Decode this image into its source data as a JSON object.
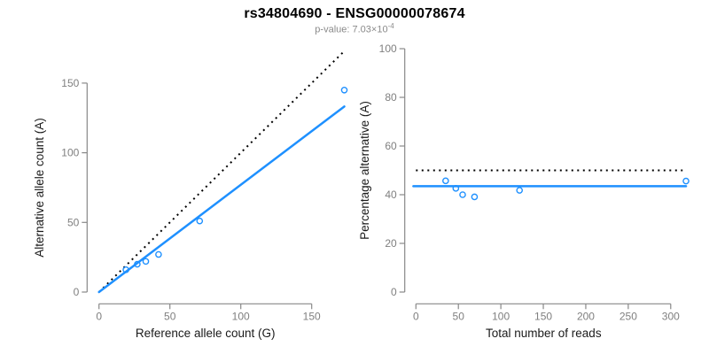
{
  "header": {
    "title": "rs34804690 - ENSG00000078674",
    "subtitle_prefix": "p-value: 7.03×10",
    "subtitle_exponent": "-4"
  },
  "colors": {
    "background": "#FFFFFF",
    "title": "#000000",
    "subtitle": "#8A8A8A",
    "axis_line": "#888888",
    "tick_label": "#7F7F7F",
    "axis_label": "#1A1A1A",
    "fit_line": "#1E90FF",
    "point_stroke": "#1E90FF",
    "dotted_line": "#000000"
  },
  "chart_data": [
    {
      "type": "scatter",
      "title": "",
      "xlabel": "Reference allele count (G)",
      "ylabel": "Alternative allele count (A)",
      "xticks": [
        0,
        50,
        100,
        150
      ],
      "yticks": [
        0,
        50,
        100,
        150
      ],
      "xlim": [
        0,
        178
      ],
      "ylim": [
        0,
        178
      ],
      "grid": false,
      "points": [
        [
          19,
          16
        ],
        [
          27,
          20
        ],
        [
          33,
          22
        ],
        [
          42,
          27
        ],
        [
          71,
          51
        ],
        [
          173,
          145
        ]
      ],
      "lines": [
        {
          "name": "identity-line",
          "style": "dotted",
          "color": "#000000",
          "x1": 0,
          "y1": 0,
          "x2": 173,
          "y2": 173
        },
        {
          "name": "fitted-line",
          "style": "solid",
          "color": "#1E90FF",
          "x1": 0,
          "y1": 0,
          "x2": 173,
          "y2": 133.2
        }
      ]
    },
    {
      "type": "scatter",
      "title": "",
      "xlabel": "Total number of reads",
      "ylabel": "Percentage alternative (A)",
      "xticks": [
        0,
        50,
        100,
        150,
        200,
        250,
        300
      ],
      "yticks": [
        0,
        20,
        40,
        60,
        80,
        100
      ],
      "xlim": [
        0,
        320
      ],
      "ylim": [
        0,
        100
      ],
      "grid": false,
      "points": [
        [
          35,
          45.7
        ],
        [
          47,
          42.6
        ],
        [
          55,
          40.0
        ],
        [
          69,
          39.1
        ],
        [
          122,
          41.8
        ],
        [
          318,
          45.6
        ]
      ],
      "lines": [
        {
          "name": "null-expectation-line",
          "style": "dotted",
          "color": "#000000",
          "x1": 0,
          "y1": 50,
          "x2": 314,
          "y2": 50
        },
        {
          "name": "fitted-line",
          "style": "solid",
          "color": "#1E90FF",
          "x1": -3,
          "y1": 43.5,
          "x2": 318,
          "y2": 43.5
        }
      ]
    }
  ]
}
